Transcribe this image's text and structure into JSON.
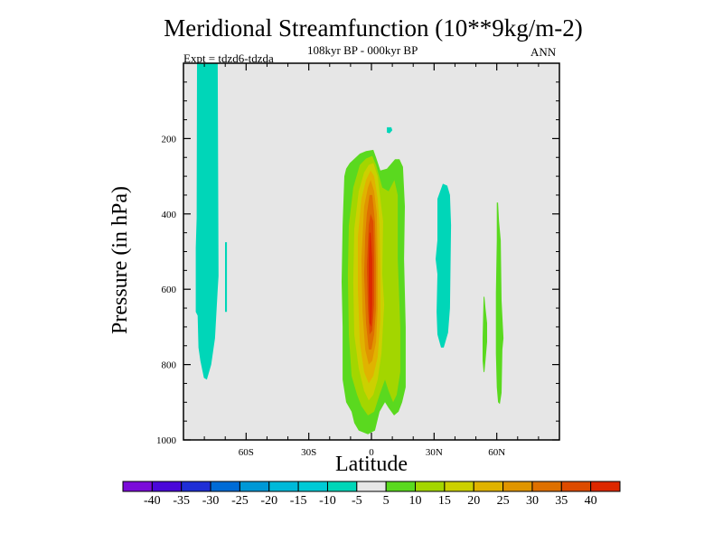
{
  "chart_data": {
    "type": "heatmap",
    "subtype": "filled-contour",
    "title": "Meridional Streamfunction (10**9kg/m-2)",
    "subtitle_left": "Expt = tdzd6-tdzda",
    "subtitle_center": "108kyr BP - 000kyr BP",
    "subtitle_right": "ANN",
    "xlabel": "Latitude",
    "ylabel": "Pressure (in hPa)",
    "xlim": [
      -90,
      90
    ],
    "ylim": [
      0,
      1000
    ],
    "y_inverted": true,
    "grid": false,
    "background_color": "#e6e6e6",
    "x_ticks": [
      {
        "value": -60,
        "label": "60S"
      },
      {
        "value": -30,
        "label": "30S"
      },
      {
        "value": 0,
        "label": "0"
      },
      {
        "value": 30,
        "label": "30N"
      },
      {
        "value": 60,
        "label": "60N"
      }
    ],
    "x_minor_ticks": [
      -80,
      -70,
      -50,
      -40,
      -20,
      -10,
      10,
      20,
      40,
      50,
      70,
      80
    ],
    "y_ticks": [
      {
        "value": 200,
        "label": "200"
      },
      {
        "value": 400,
        "label": "400"
      },
      {
        "value": 600,
        "label": "600"
      },
      {
        "value": 800,
        "label": "800"
      },
      {
        "value": 1000,
        "label": "1000"
      }
    ],
    "y_minor_ticks": [
      50,
      100,
      150,
      250,
      300,
      350,
      450,
      500,
      550,
      650,
      700,
      750,
      850,
      900,
      950
    ],
    "colorbar": {
      "placement": "bottom",
      "labels": [
        "-40",
        "-35",
        "-30",
        "-25",
        "-20",
        "-15",
        "-10",
        "-5",
        "5",
        "10",
        "15",
        "20",
        "25",
        "30",
        "35",
        "40"
      ],
      "colors": [
        "#7b0bd9",
        "#4a08d9",
        "#1f2fd6",
        "#006bd6",
        "#0098d6",
        "#00b9d9",
        "#00cad6",
        "#00d6b8",
        "#e6e6e6",
        "#5ad91f",
        "#a3d600",
        "#ccd000",
        "#e0b300",
        "#e09500",
        "#de7000",
        "#dd4b00",
        "#dd2800"
      ]
    },
    "contours": [
      {
        "level": "-10 to -5",
        "color": "#00d6b8",
        "name": "southern-polar-cell",
        "points": [
          [
            -83.5,
            0
          ],
          [
            -73.6,
            0
          ],
          [
            -73.2,
            565
          ],
          [
            -73.6,
            600
          ],
          [
            -74.9,
            730
          ],
          [
            -75.8,
            765
          ],
          [
            -76.7,
            800
          ],
          [
            -78.8,
            840
          ],
          [
            -80.2,
            835
          ],
          [
            -81.9,
            790
          ],
          [
            -82.8,
            755
          ],
          [
            -83.2,
            670
          ],
          [
            -84.1,
            660
          ],
          [
            -84.1,
            490
          ],
          [
            -83.7,
            410
          ]
        ]
      },
      {
        "level": "-10 to -5",
        "color": "#00d6b8",
        "name": "southern-sliver",
        "points": [
          [
            -70.1,
            475
          ],
          [
            -69.2,
            475
          ],
          [
            -69.2,
            660
          ],
          [
            -70.1,
            660
          ]
        ]
      },
      {
        "level": "-10 to -5",
        "color": "#00d6b8",
        "name": "upper-small-blob",
        "points": [
          [
            7.4,
            170
          ],
          [
            9.5,
            170
          ],
          [
            10.0,
            178
          ],
          [
            8.7,
            186
          ],
          [
            7.4,
            184
          ]
        ]
      },
      {
        "level": "-10 to -5",
        "color": "#00d6b8",
        "name": "northern-cell",
        "points": [
          [
            31.6,
            360
          ],
          [
            34.2,
            320
          ],
          [
            36.3,
            325
          ],
          [
            37.6,
            350
          ],
          [
            38.1,
            430
          ],
          [
            37.6,
            650
          ],
          [
            36.7,
            715
          ],
          [
            34.6,
            755
          ],
          [
            33.3,
            755
          ],
          [
            31.6,
            720
          ],
          [
            31.2,
            660
          ],
          [
            31.6,
            560
          ],
          [
            30.7,
            520
          ],
          [
            31.6,
            470
          ]
        ]
      },
      {
        "level": "5 to 10",
        "color": "#5ad91f",
        "name": "northern-thin-1",
        "points": [
          [
            53.7,
            620
          ],
          [
            54.1,
            620
          ],
          [
            54.6,
            650
          ],
          [
            55.4,
            690
          ],
          [
            55.4,
            740
          ],
          [
            54.6,
            790
          ],
          [
            54.1,
            820
          ],
          [
            53.7,
            820
          ],
          [
            53.2,
            790
          ],
          [
            53.2,
            730
          ]
        ]
      },
      {
        "level": "5 to 10",
        "color": "#5ad91f",
        "name": "northern-thin-2",
        "points": [
          [
            60.0,
            370
          ],
          [
            60.6,
            370
          ],
          [
            61.1,
            420
          ],
          [
            61.9,
            470
          ],
          [
            62.3,
            630
          ],
          [
            63.2,
            730
          ],
          [
            62.7,
            760
          ],
          [
            62.3,
            875
          ],
          [
            61.5,
            905
          ],
          [
            60.6,
            900
          ],
          [
            60.0,
            860
          ],
          [
            59.6,
            770
          ],
          [
            59.6,
            610
          ],
          [
            60.0,
            470
          ]
        ]
      },
      {
        "level": "5 to 10",
        "color": "#5ad91f",
        "name": "central-plume-outer",
        "points": [
          [
            -13.0,
            300
          ],
          [
            -12.1,
            280
          ],
          [
            -10.4,
            265
          ],
          [
            -5.6,
            240
          ],
          [
            -2.6,
            233
          ],
          [
            0.9,
            230
          ],
          [
            2.2,
            250
          ],
          [
            4.3,
            285
          ],
          [
            7.4,
            280
          ],
          [
            11.3,
            255
          ],
          [
            13.4,
            255
          ],
          [
            15.1,
            275
          ],
          [
            16.0,
            380
          ],
          [
            15.6,
            520
          ],
          [
            16.4,
            700
          ],
          [
            16.4,
            860
          ],
          [
            14.7,
            900
          ],
          [
            13.0,
            925
          ],
          [
            10.8,
            935
          ],
          [
            8.2,
            915
          ],
          [
            6.5,
            900
          ],
          [
            3.9,
            925
          ],
          [
            1.7,
            975
          ],
          [
            -1.7,
            985
          ],
          [
            -6.1,
            975
          ],
          [
            -8.2,
            955
          ],
          [
            -9.5,
            925
          ],
          [
            -12.1,
            900
          ],
          [
            -13.8,
            840
          ],
          [
            -13.8,
            700
          ],
          [
            -14.3,
            580
          ],
          [
            -13.8,
            430
          ]
        ]
      },
      {
        "level": "10 to 15",
        "color": "#a3d600",
        "name": "central-plume-10",
        "points": [
          [
            -8.7,
            330
          ],
          [
            -5.6,
            270
          ],
          [
            -2.6,
            253
          ],
          [
            0.4,
            246
          ],
          [
            2.2,
            270
          ],
          [
            5.2,
            330
          ],
          [
            8.2,
            340
          ],
          [
            11.0,
            310
          ],
          [
            12.6,
            350
          ],
          [
            12.6,
            520
          ],
          [
            13.8,
            700
          ],
          [
            13.8,
            820
          ],
          [
            12.1,
            880
          ],
          [
            10.4,
            900
          ],
          [
            8.2,
            870
          ],
          [
            6.5,
            840
          ],
          [
            3.9,
            880
          ],
          [
            1.3,
            925
          ],
          [
            -1.7,
            935
          ],
          [
            -4.8,
            910
          ],
          [
            -6.9,
            880
          ],
          [
            -9.5,
            830
          ],
          [
            -10.8,
            720
          ],
          [
            -11.3,
            560
          ],
          [
            -10.8,
            430
          ]
        ]
      },
      {
        "level": "15 to 20",
        "color": "#ccd000",
        "name": "central-plume-15",
        "points": [
          [
            -6.1,
            340
          ],
          [
            -3.5,
            290
          ],
          [
            -1.3,
            270
          ],
          [
            0.9,
            265
          ],
          [
            3.0,
            300
          ],
          [
            4.3,
            360
          ],
          [
            5.6,
            420
          ],
          [
            5.2,
            560
          ],
          [
            6.1,
            640
          ],
          [
            4.8,
            770
          ],
          [
            3.0,
            840
          ],
          [
            0.9,
            880
          ],
          [
            -1.3,
            895
          ],
          [
            -3.5,
            870
          ],
          [
            -6.1,
            810
          ],
          [
            -8.2,
            720
          ],
          [
            -8.7,
            580
          ],
          [
            -8.2,
            440
          ]
        ]
      },
      {
        "level": "20 to 25",
        "color": "#e0b300",
        "name": "central-plume-20",
        "points": [
          [
            -4.8,
            360
          ],
          [
            -2.6,
            310
          ],
          [
            -0.4,
            285
          ],
          [
            1.3,
            300
          ],
          [
            3.0,
            360
          ],
          [
            3.9,
            430
          ],
          [
            4.3,
            560
          ],
          [
            4.3,
            680
          ],
          [
            3.0,
            780
          ],
          [
            0.9,
            830
          ],
          [
            -1.3,
            850
          ],
          [
            -3.5,
            820
          ],
          [
            -5.6,
            740
          ],
          [
            -6.5,
            600
          ],
          [
            -6.5,
            460
          ]
        ]
      },
      {
        "level": "25 to 30",
        "color": "#e09500",
        "name": "central-plume-25",
        "points": [
          [
            -3.5,
            380
          ],
          [
            -1.7,
            330
          ],
          [
            -0.4,
            310
          ],
          [
            1.3,
            340
          ],
          [
            2.6,
            400
          ],
          [
            3.0,
            520
          ],
          [
            3.0,
            650
          ],
          [
            2.2,
            740
          ],
          [
            0.4,
            790
          ],
          [
            -1.3,
            800
          ],
          [
            -3.0,
            760
          ],
          [
            -4.3,
            660
          ],
          [
            -4.8,
            520
          ]
        ]
      },
      {
        "level": "30 to 35",
        "color": "#de7000",
        "name": "central-plume-30",
        "points": [
          [
            -2.2,
            400
          ],
          [
            -0.9,
            350
          ],
          [
            0.4,
            350
          ],
          [
            1.7,
            420
          ],
          [
            2.2,
            540
          ],
          [
            2.2,
            650
          ],
          [
            1.3,
            720
          ],
          [
            0,
            760
          ],
          [
            -1.3,
            760
          ],
          [
            -2.6,
            690
          ],
          [
            -3.5,
            560
          ],
          [
            -3.0,
            460
          ]
        ]
      },
      {
        "level": "35 to 40",
        "color": "#dd4b00",
        "name": "central-plume-35",
        "points": [
          [
            -1.3,
            430
          ],
          [
            -0.4,
            400
          ],
          [
            0.9,
            420
          ],
          [
            1.3,
            520
          ],
          [
            1.3,
            640
          ],
          [
            0.4,
            710
          ],
          [
            -0.9,
            720
          ],
          [
            -1.7,
            650
          ],
          [
            -2.2,
            540
          ]
        ]
      },
      {
        "level": "> 40",
        "color": "#dd2800",
        "name": "central-plume-40",
        "points": [
          [
            -0.9,
            450
          ],
          [
            -0.4,
            450
          ],
          [
            0.4,
            520
          ],
          [
            0.4,
            640
          ],
          [
            0,
            700
          ],
          [
            -0.9,
            690
          ],
          [
            -1.3,
            600
          ],
          [
            -1.3,
            520
          ]
        ]
      }
    ]
  }
}
